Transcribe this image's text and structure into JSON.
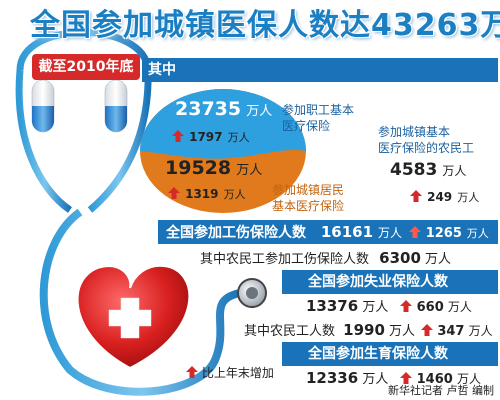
{
  "title": "全国参加城镇医保人数达43263万",
  "cutoff_label": "截至2010年底",
  "of_which_label": "其中",
  "employee": {
    "value": "23735",
    "unit": "万人",
    "increase": "1797",
    "increase_unit": "万人",
    "label_line1": "参加职工基本",
    "label_line2": "医疗保险"
  },
  "resident": {
    "value": "19528",
    "unit": "万人",
    "increase": "1319",
    "increase_unit": "万人",
    "label_line1": "参加城镇居民",
    "label_line2": "基本医疗保险"
  },
  "migrant_medical": {
    "label_line1": "参加城镇基本",
    "label_line2": "医疗保险的农民工",
    "value": "4583",
    "unit": "万人",
    "increase": "249",
    "increase_unit": "万人"
  },
  "injury": {
    "label": "全国参加工伤保险人数",
    "value": "16161",
    "unit": "万人",
    "increase": "1265",
    "increase_unit": "万人",
    "migrant_label": "其中农民工参加工伤保险人数",
    "migrant_value": "6300",
    "migrant_unit": "万人"
  },
  "unemployment": {
    "label": "全国参加失业保险人数",
    "value": "13376",
    "unit": "万人",
    "increase": "660",
    "increase_unit": "万人",
    "migrant_label": "其中农民工人数",
    "migrant_value": "1990",
    "migrant_unit": "万人",
    "migrant_increase": "347",
    "migrant_increase_unit": "万人"
  },
  "maternity": {
    "label": "全国参加生育保险人数",
    "value": "12336",
    "unit": "万人",
    "increase": "1460",
    "increase_unit": "万人"
  },
  "legend_label": "比上年末增加",
  "credit": "新华社记者 卢哲 编制",
  "colors": {
    "blue": "#1a73b8",
    "orange": "#e07a1c",
    "red": "#d62a2a",
    "light_blue": "#2ea0e0"
  }
}
